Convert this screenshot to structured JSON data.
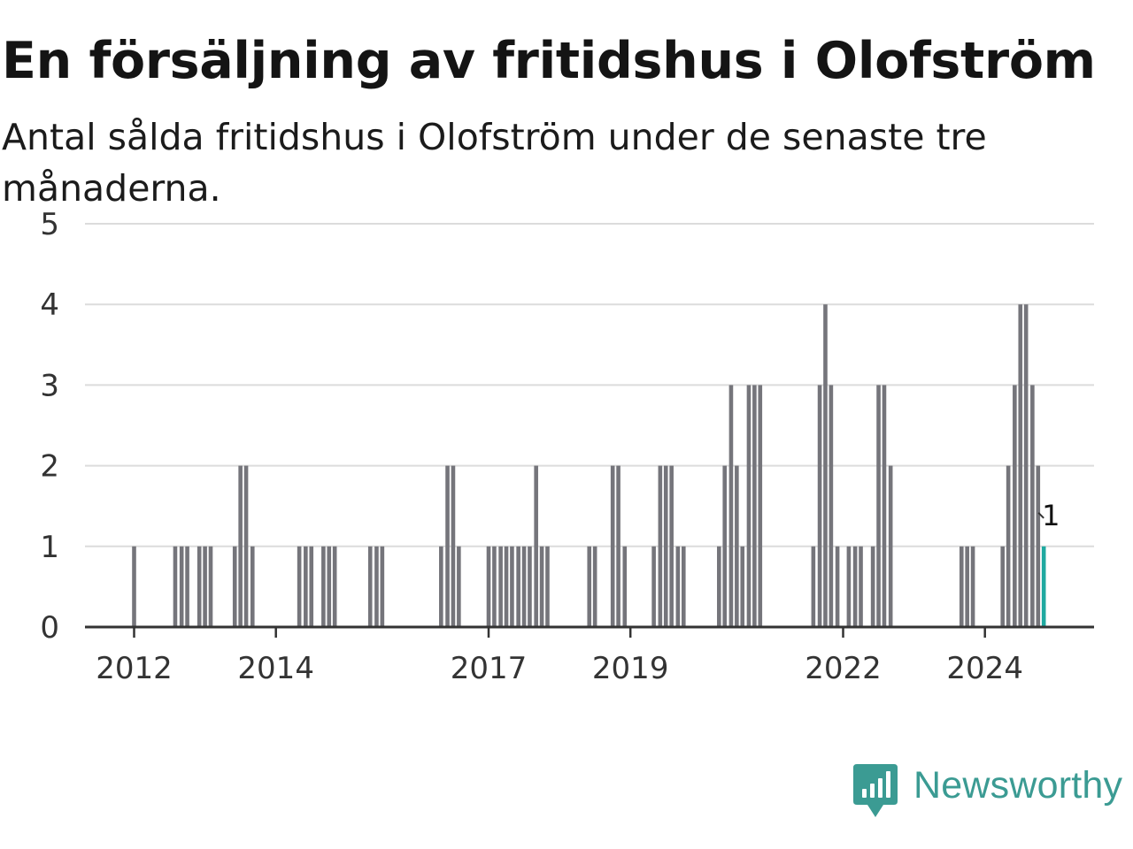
{
  "title": "En försäljning av fritidshus i Olofström",
  "subtitle": "Antal sålda fritidshus i Olofström under de senaste tre månaderna.",
  "brand": {
    "name": "Newsworthy",
    "icon": "newsworthy-logo-icon",
    "color": "#3b9b93"
  },
  "colors": {
    "bar": "#75757b",
    "highlight": "#1fa9a0",
    "grid": "#dcdcdc",
    "axis": "#333333"
  },
  "chart_data": {
    "type": "bar",
    "x_unit": "year (monthly bars, fractional year)",
    "ylim": [
      0,
      5
    ],
    "yticks": [
      "0",
      "1",
      "2",
      "3",
      "4",
      "5"
    ],
    "xticks": [
      {
        "label": "2012",
        "x": 2012.0
      },
      {
        "label": "2014",
        "x": 2014.0
      },
      {
        "label": "2017",
        "x": 2017.0
      },
      {
        "label": "2019",
        "x": 2019.0
      },
      {
        "label": "2022",
        "x": 2022.0
      },
      {
        "label": "2024",
        "x": 2024.0
      }
    ],
    "grid": true,
    "annotation": {
      "text": "1",
      "x": 2024.83,
      "value": 1
    },
    "x": [
      2012.0,
      2012.58,
      2012.67,
      2012.75,
      2012.92,
      2013.0,
      2013.08,
      2013.42,
      2013.5,
      2013.58,
      2013.67,
      2014.33,
      2014.42,
      2014.5,
      2014.67,
      2014.75,
      2014.83,
      2015.33,
      2015.42,
      2015.5,
      2016.33,
      2016.42,
      2016.5,
      2016.58,
      2017.0,
      2017.08,
      2017.17,
      2017.25,
      2017.33,
      2017.42,
      2017.5,
      2017.58,
      2017.67,
      2017.75,
      2017.83,
      2018.42,
      2018.5,
      2018.75,
      2018.83,
      2018.92,
      2019.33,
      2019.42,
      2019.5,
      2019.58,
      2019.67,
      2019.75,
      2020.25,
      2020.33,
      2020.42,
      2020.5,
      2020.58,
      2020.67,
      2020.75,
      2020.83,
      2021.58,
      2021.67,
      2021.75,
      2021.83,
      2021.92,
      2022.08,
      2022.17,
      2022.25,
      2022.42,
      2022.5,
      2022.58,
      2022.67,
      2023.67,
      2023.75,
      2023.83,
      2024.25,
      2024.33,
      2024.42,
      2024.5,
      2024.58,
      2024.67,
      2024.75,
      2024.83
    ],
    "values": [
      1,
      1,
      1,
      1,
      1,
      1,
      1,
      1,
      2,
      2,
      1,
      1,
      1,
      1,
      1,
      1,
      1,
      1,
      1,
      1,
      1,
      2,
      2,
      1,
      1,
      1,
      1,
      1,
      1,
      1,
      1,
      1,
      2,
      1,
      1,
      1,
      1,
      2,
      2,
      1,
      1,
      2,
      2,
      2,
      1,
      1,
      1,
      2,
      3,
      2,
      1,
      3,
      3,
      3,
      1,
      3,
      4,
      3,
      1,
      1,
      1,
      1,
      1,
      3,
      3,
      2,
      1,
      1,
      1,
      1,
      2,
      3,
      4,
      4,
      3,
      2,
      1
    ]
  }
}
